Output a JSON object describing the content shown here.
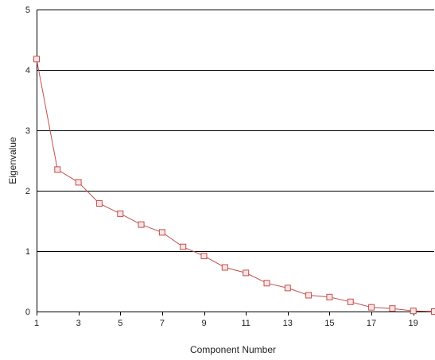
{
  "chart_data": {
    "type": "line",
    "xlabel": "Component Number",
    "ylabel": "Eigenvalue",
    "xlim": [
      1,
      20
    ],
    "ylim": [
      0,
      5
    ],
    "x_ticks": [
      1,
      3,
      5,
      7,
      9,
      11,
      13,
      15,
      17,
      19
    ],
    "y_ticks": [
      0,
      1,
      2,
      3,
      4,
      5
    ],
    "grid": "horizontal",
    "marker": "square",
    "colors": {
      "series": "#c0504d",
      "marker_fill": "#fce4e4",
      "grid": "#000000"
    },
    "x": [
      1,
      2,
      3,
      4,
      5,
      6,
      7,
      8,
      9,
      10,
      11,
      12,
      13,
      14,
      15,
      16,
      17,
      18,
      19,
      20
    ],
    "values": [
      4.18,
      2.35,
      2.14,
      1.79,
      1.62,
      1.44,
      1.31,
      1.07,
      0.92,
      0.73,
      0.64,
      0.47,
      0.39,
      0.27,
      0.24,
      0.16,
      0.07,
      0.05,
      0.01,
      0.0
    ]
  }
}
